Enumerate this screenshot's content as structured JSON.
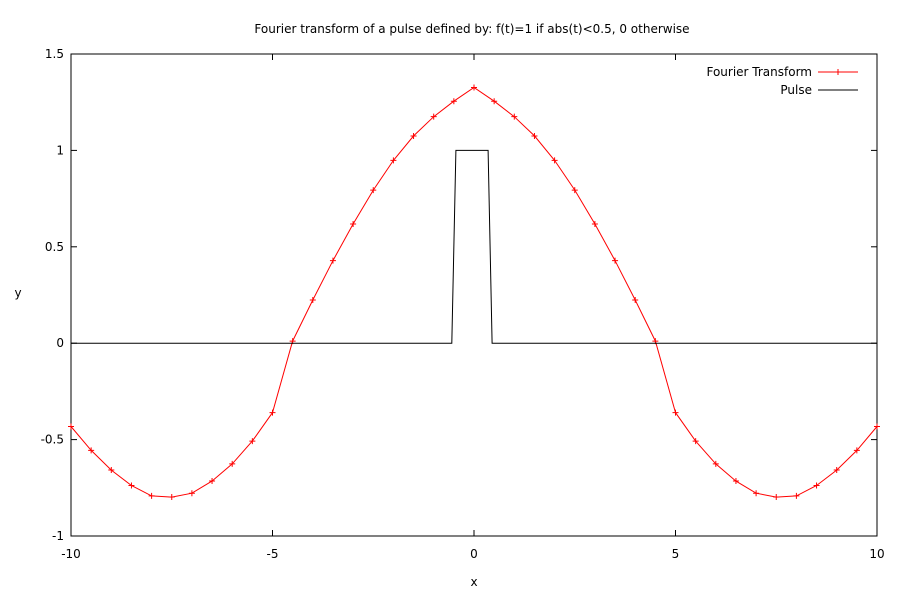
{
  "chart_data": {
    "type": "line",
    "title": "Fourier transform of a pulse defined by: f(t)=1 if abs(t)<0.5, 0 otherwise",
    "xlabel": "x",
    "ylabel": "y",
    "xlim": [
      -10,
      10
    ],
    "ylim": [
      -1,
      1.5
    ],
    "xticks": [
      "-10",
      "-5",
      "0",
      "5",
      "10"
    ],
    "yticks": [
      "-1",
      "-0.5",
      "0",
      "0.5",
      "1",
      "1.5"
    ],
    "grid": false,
    "legend_position": "top-right",
    "series": [
      {
        "name": "Fourier Transform",
        "color": "#ff0000",
        "marker": "plus",
        "x": [
          -10,
          -9.5,
          -9,
          -8.5,
          -8,
          -7.5,
          -7,
          -6.5,
          -6,
          -5.5,
          -5,
          -4.5,
          -4,
          -3.5,
          -3,
          -2.5,
          -2,
          -1.5,
          -1,
          -0.5,
          0,
          0.5,
          1,
          1.5,
          2,
          2.5,
          3,
          3.5,
          4,
          4.5,
          5,
          5.5,
          6,
          6.5,
          7,
          7.5,
          8,
          8.5,
          9,
          9.5,
          10
        ],
        "y": [
          -0.432,
          -0.556,
          -0.658,
          -0.738,
          -0.792,
          -0.798,
          -0.778,
          -0.715,
          -0.626,
          -0.508,
          -0.36,
          0.011,
          0.224,
          0.428,
          0.618,
          0.794,
          0.948,
          1.075,
          1.175,
          1.255,
          1.326,
          1.255,
          1.175,
          1.075,
          0.948,
          0.794,
          0.618,
          0.428,
          0.224,
          0.011,
          -0.36,
          -0.508,
          -0.626,
          -0.715,
          -0.778,
          -0.798,
          -0.792,
          -0.738,
          -0.658,
          -0.556,
          -0.432
        ]
      },
      {
        "name": "Pulse",
        "color": "#000000",
        "x": [
          -10,
          -0.55,
          -0.45,
          0.35,
          0.45,
          10
        ],
        "y": [
          0,
          0,
          1,
          1,
          0,
          0
        ]
      }
    ]
  }
}
